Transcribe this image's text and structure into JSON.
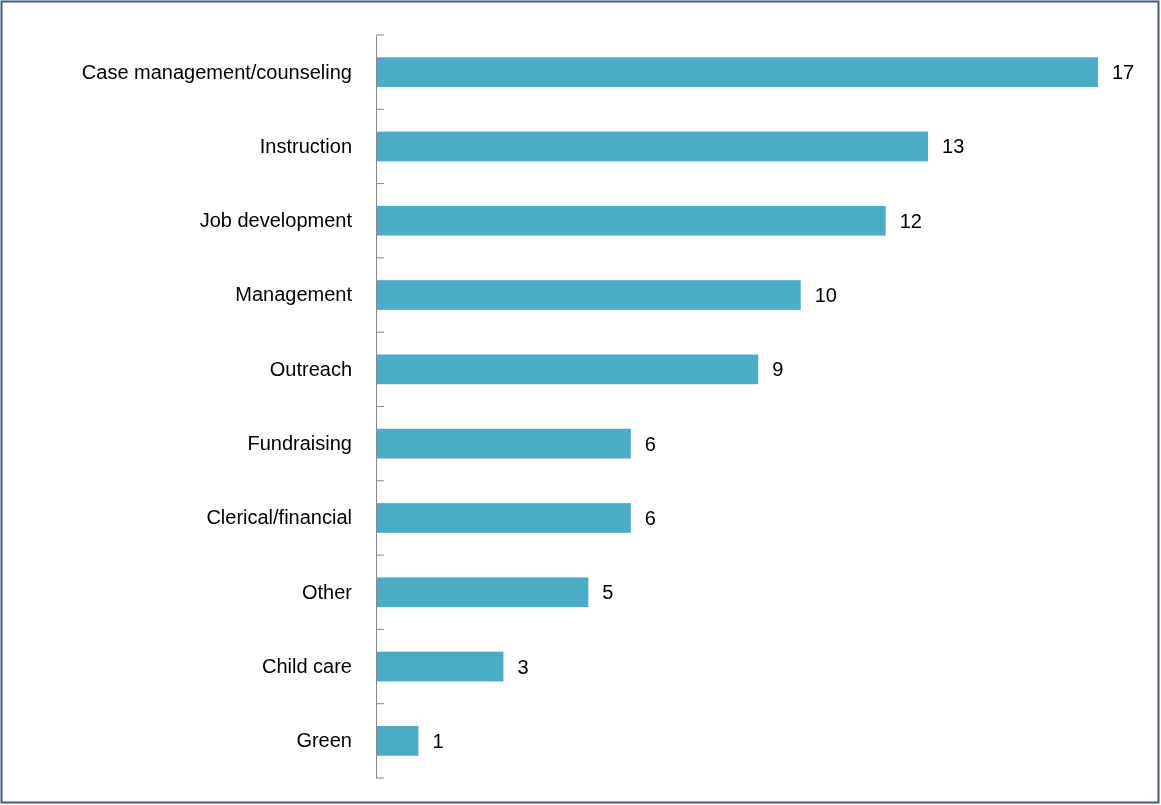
{
  "chart_data": {
    "type": "bar",
    "orientation": "horizontal",
    "categories": [
      "Case management/counseling",
      "Instruction",
      "Job development",
      "Management",
      "Outreach",
      "Fundraising",
      "Clerical/financial",
      "Other",
      "Child care",
      "Green"
    ],
    "values": [
      17,
      13,
      12,
      10,
      9,
      6,
      6,
      5,
      3,
      1
    ],
    "color": "#4bacc6",
    "data_labels": true
  }
}
